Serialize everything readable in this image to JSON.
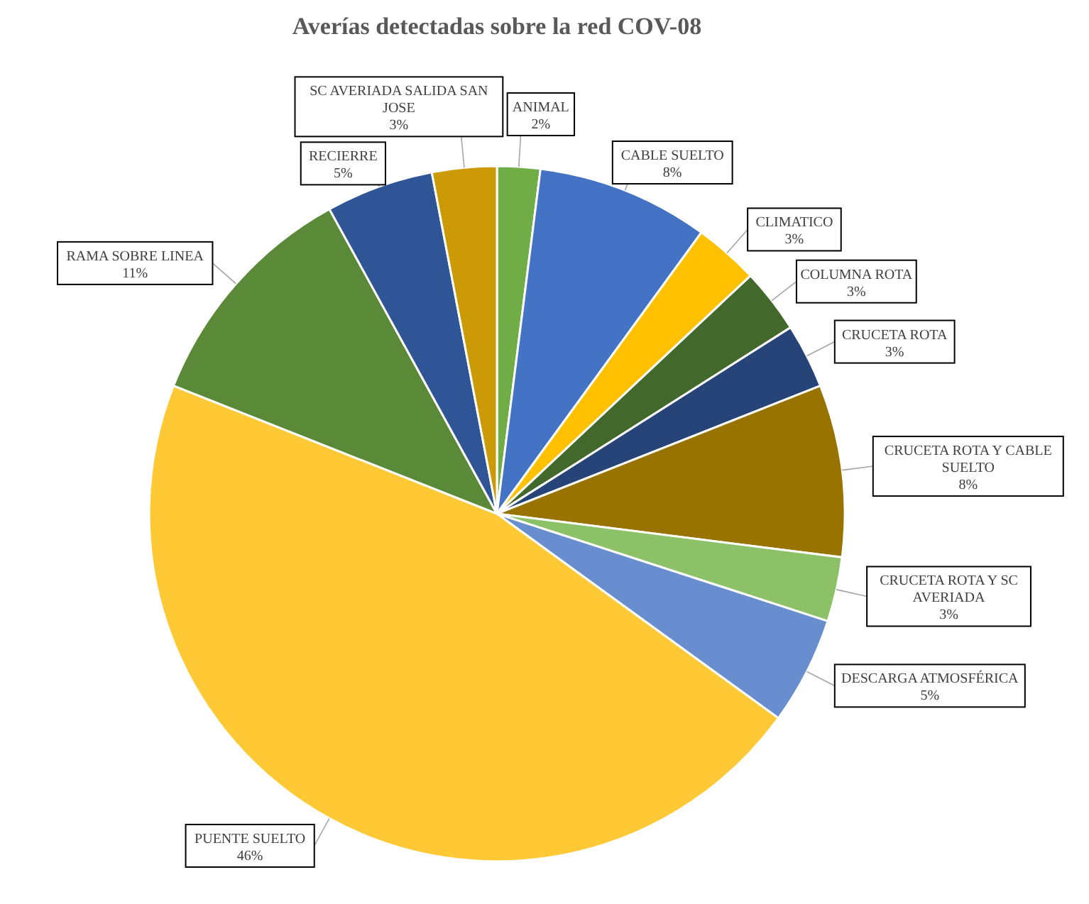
{
  "chart_data": {
    "type": "pie",
    "title": "Averías detectadas sobre la red COV-08",
    "categories": [
      "ANIMAL",
      "CABLE SUELTO",
      "CLIMATICO",
      "COLUMNA ROTA",
      "CRUCETA ROTA",
      "CRUCETA ROTA Y CABLE SUELTO",
      "CRUCETA ROTA Y SC AVERIADA",
      "DESCARGA ATMOSFÉRICA",
      "PUENTE SUELTO",
      "RAMA SOBRE LINEA",
      "RECIERRE",
      "SC AVERIADA SALIDA SAN JOSE"
    ],
    "values": [
      2,
      8,
      3,
      3,
      3,
      8,
      3,
      5,
      46,
      11,
      5,
      3
    ],
    "value_labels": [
      "2%",
      "8%",
      "3%",
      "3%",
      "3%",
      "8%",
      "3%",
      "5%",
      "46%",
      "11%",
      "5%",
      "3%"
    ],
    "colors": [
      "#70ad47",
      "#4472c4",
      "#ffc000",
      "#43682b",
      "#264478",
      "#997300",
      "#8cc168",
      "#698ed0",
      "#ffc935",
      "#5a8a38",
      "#2f5597",
      "#cc9a06"
    ]
  }
}
